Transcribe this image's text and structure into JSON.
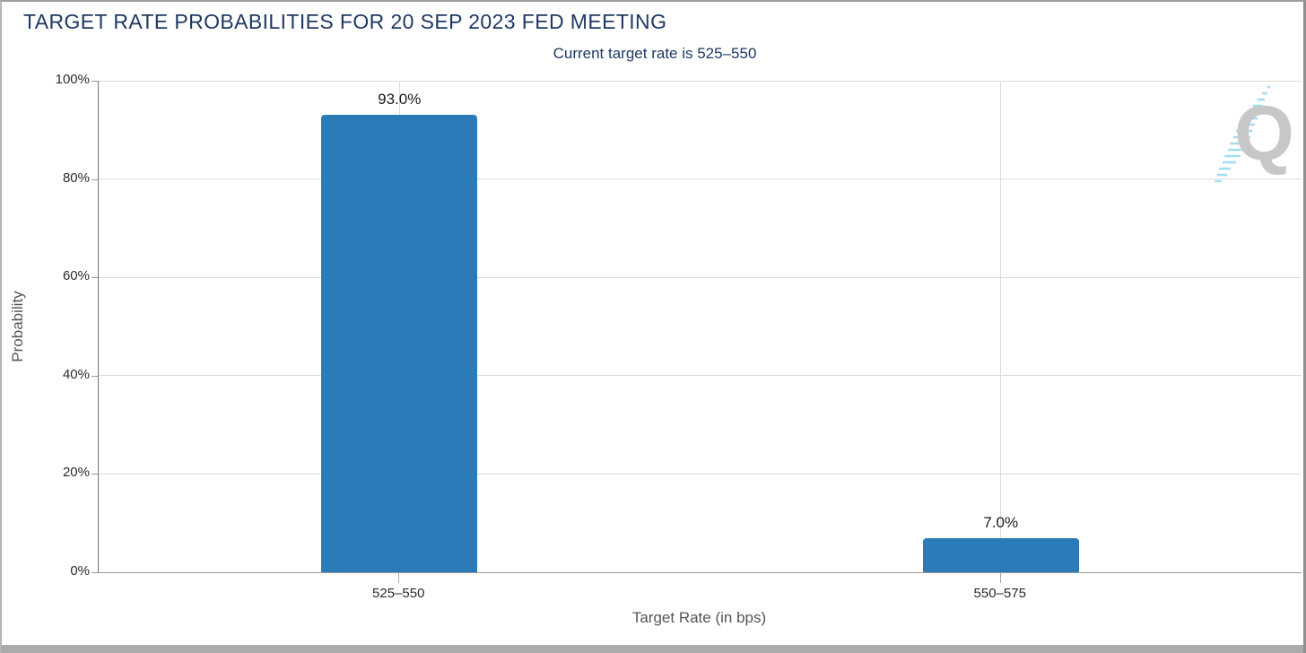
{
  "chart_data": {
    "type": "bar",
    "title": "TARGET RATE PROBABILITIES FOR 20 SEP 2023 FED MEETING",
    "subtitle": "Current target rate is 525–550",
    "categories": [
      "525–550",
      "550–575"
    ],
    "values": [
      93.0,
      7.0
    ],
    "bar_labels": [
      "93.0%",
      "7.0%"
    ],
    "xlabel": "Target Rate (in bps)",
    "ylabel": "Probability",
    "yticks": [
      {
        "value": 0,
        "label": "0%"
      },
      {
        "value": 20,
        "label": "20%"
      },
      {
        "value": 40,
        "label": "40%"
      },
      {
        "value": 60,
        "label": "60%"
      },
      {
        "value": 80,
        "label": "80%"
      },
      {
        "value": 100,
        "label": "100%"
      }
    ],
    "ylim": [
      0,
      100
    ],
    "grid": true,
    "legend": false,
    "bar_color": "#2b7bb9",
    "title_color": "#1f3864",
    "gridline_color": "#dcdcdc"
  },
  "logo": {
    "letter": "Q",
    "gray": "#c7c7c7",
    "swoosh_blue": "#a5ddf1"
  }
}
